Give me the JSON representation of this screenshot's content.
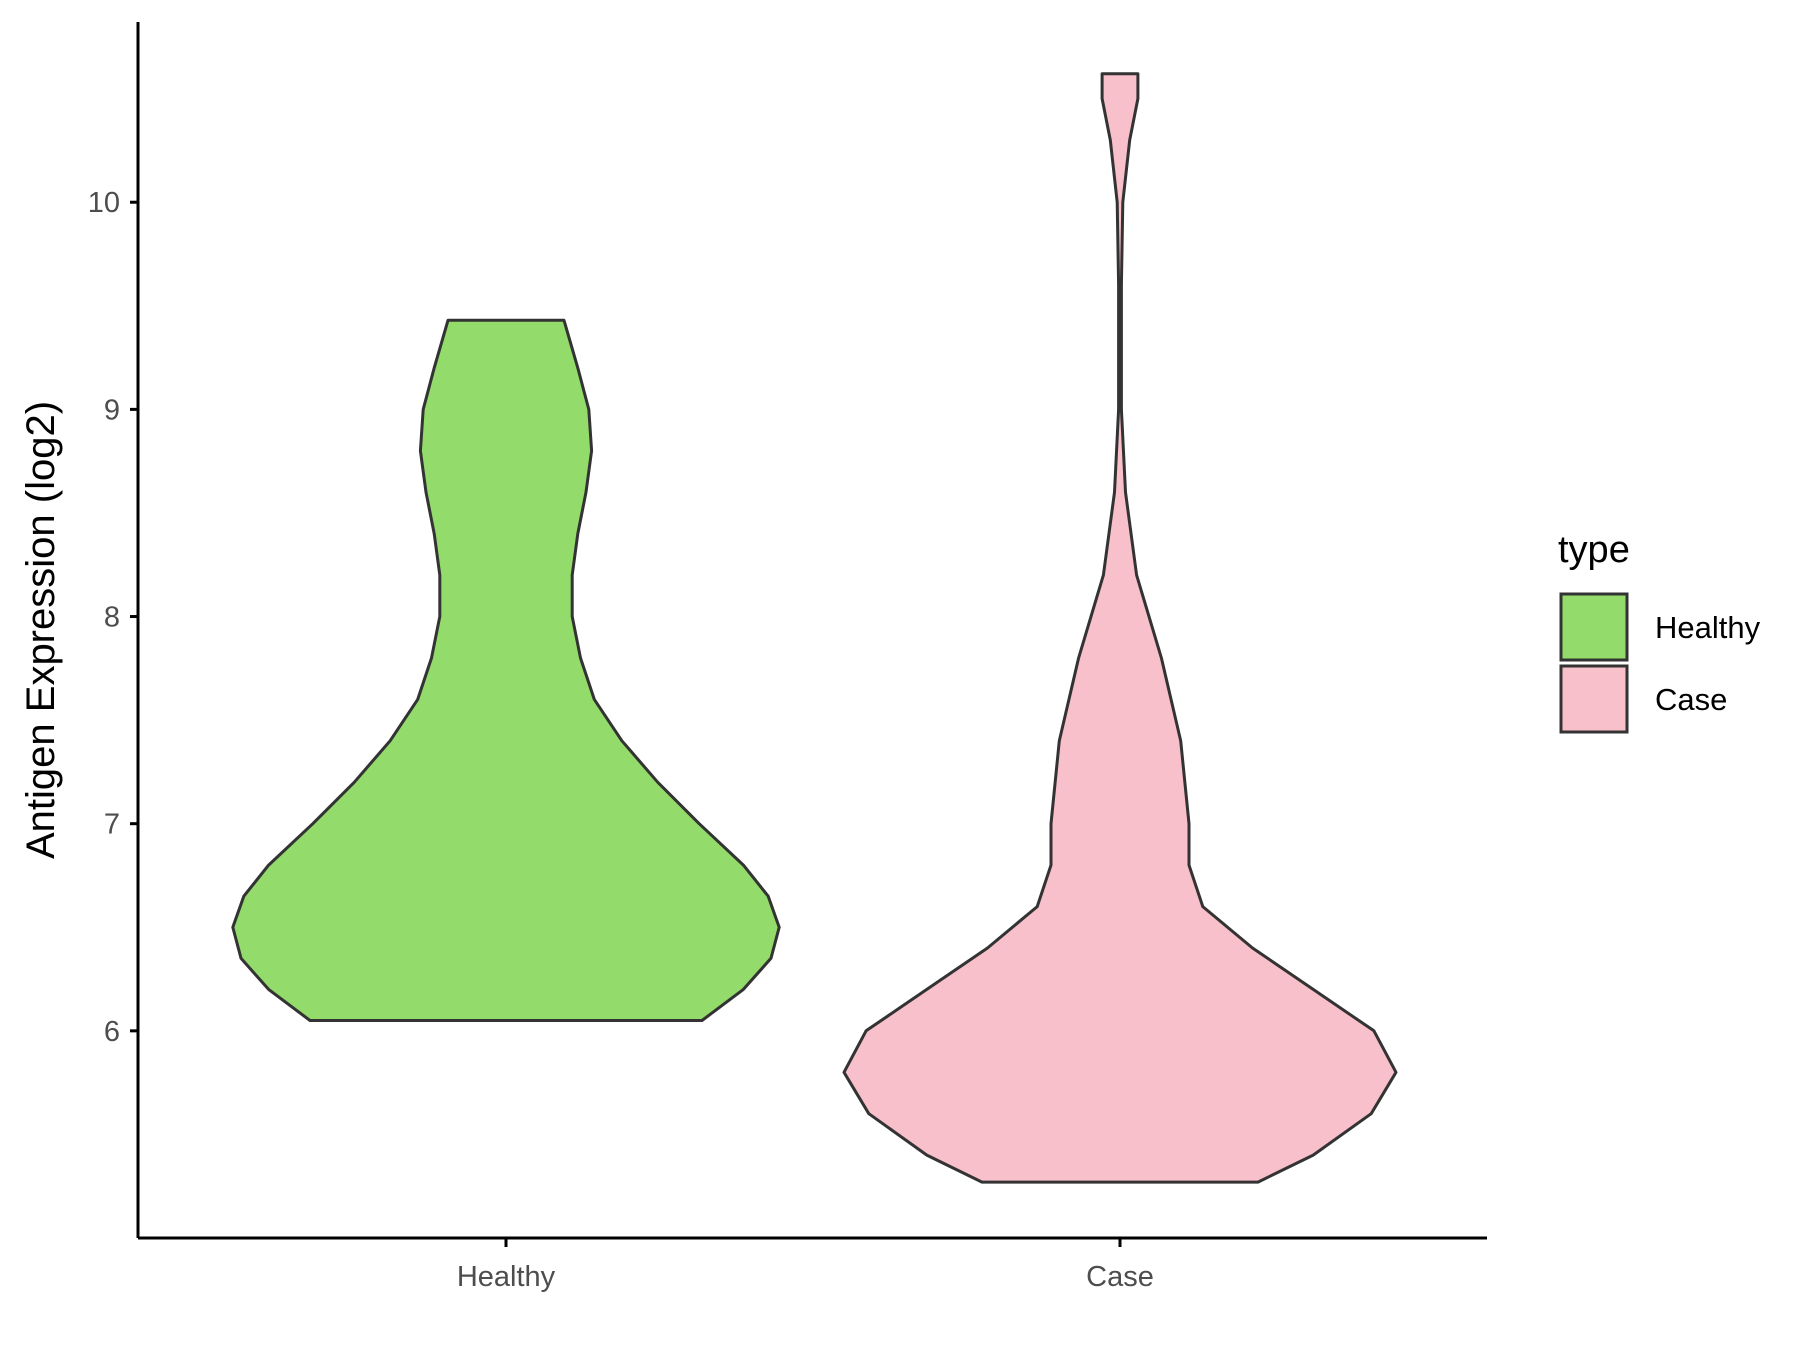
{
  "chart_data": {
    "type": "violin",
    "ylabel": "Antigen Expression (log2)",
    "ylim": [
      5.0,
      10.87
    ],
    "yticks": [
      6,
      7,
      8,
      9,
      10
    ],
    "categories": [
      "Healthy",
      "Case"
    ],
    "legend": {
      "title": "type",
      "position": "right"
    },
    "grid": false,
    "series": [
      {
        "name": "Healthy",
        "color": "#93DB6B",
        "min": 6.05,
        "max": 9.43,
        "density": [
          [
            6.05,
            0.71
          ],
          [
            6.2,
            0.86
          ],
          [
            6.35,
            0.96
          ],
          [
            6.5,
            0.99
          ],
          [
            6.65,
            0.95
          ],
          [
            6.8,
            0.86
          ],
          [
            7.0,
            0.7
          ],
          [
            7.2,
            0.55
          ],
          [
            7.4,
            0.42
          ],
          [
            7.6,
            0.32
          ],
          [
            7.8,
            0.27
          ],
          [
            8.0,
            0.24
          ],
          [
            8.2,
            0.24
          ],
          [
            8.4,
            0.26
          ],
          [
            8.6,
            0.29
          ],
          [
            8.8,
            0.31
          ],
          [
            9.0,
            0.3
          ],
          [
            9.2,
            0.26
          ],
          [
            9.43,
            0.21
          ]
        ]
      },
      {
        "name": "Case",
        "color": "#F8C0CB",
        "min": 5.27,
        "max": 10.62,
        "density": [
          [
            5.27,
            0.5
          ],
          [
            5.4,
            0.7
          ],
          [
            5.6,
            0.91
          ],
          [
            5.8,
            1.0
          ],
          [
            6.0,
            0.92
          ],
          [
            6.2,
            0.7
          ],
          [
            6.4,
            0.48
          ],
          [
            6.6,
            0.3
          ],
          [
            6.8,
            0.25
          ],
          [
            7.0,
            0.25
          ],
          [
            7.4,
            0.22
          ],
          [
            7.8,
            0.15
          ],
          [
            8.2,
            0.06
          ],
          [
            8.6,
            0.02
          ],
          [
            9.0,
            0.005
          ],
          [
            9.6,
            0.005
          ],
          [
            10.0,
            0.01
          ],
          [
            10.3,
            0.035
          ],
          [
            10.5,
            0.065
          ],
          [
            10.62,
            0.065
          ]
        ]
      }
    ]
  }
}
